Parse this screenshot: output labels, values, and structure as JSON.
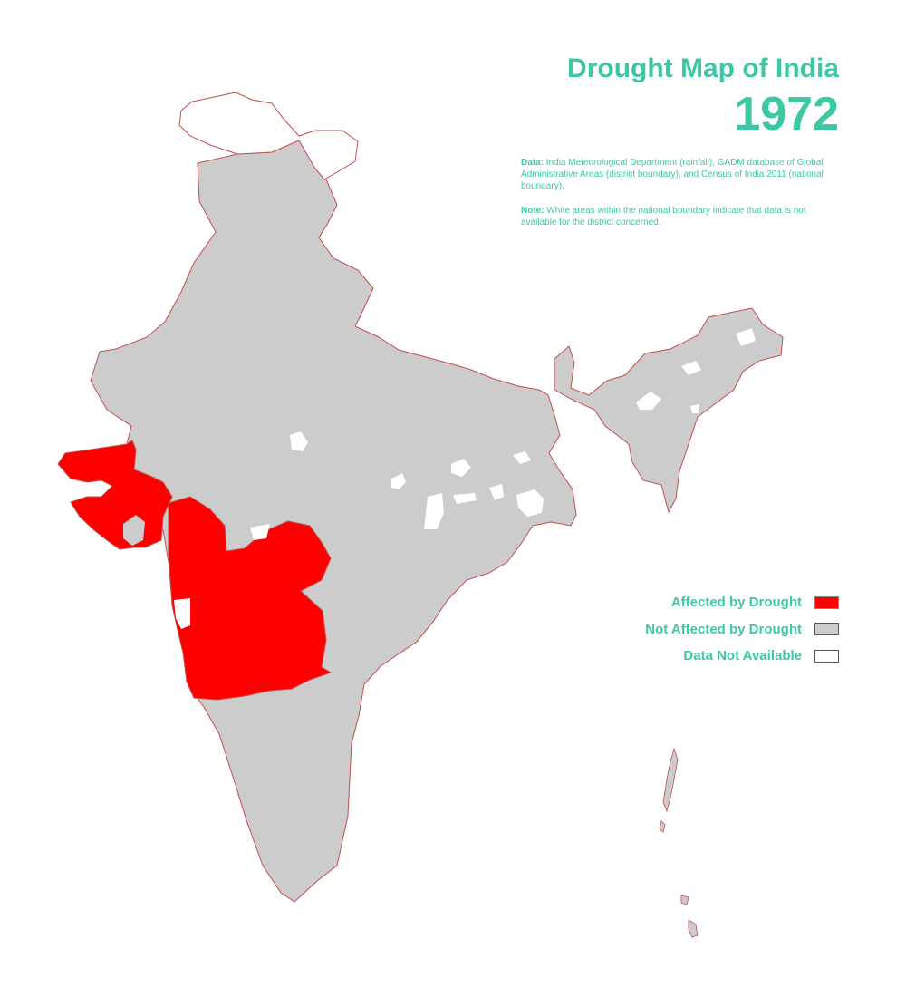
{
  "header": {
    "title": "Drought Map of India",
    "year": "1972"
  },
  "notes": {
    "data_label": "Data:",
    "data_text": " India Meteorological Department (rainfall), GADM database of Global Administrative Areas (district boundary), and Census of India 2011 (national boundary).",
    "note_label": "Note:",
    "note_text": " White areas within the national boundary indicate that data is not available for the district concerned."
  },
  "legend": {
    "items": [
      {
        "label": "Affected by Drought",
        "color": "#ff0000"
      },
      {
        "label": "Not Affected by Drought",
        "color": "#cccccc"
      },
      {
        "label": "Data Not Available",
        "color": "#ffffff"
      }
    ]
  },
  "colors": {
    "accent": "#3cc8a4",
    "affected": "#ff0000",
    "not_affected": "#cccccc",
    "no_data": "#ffffff",
    "boundary": "#c0504d"
  },
  "regions": [
    {
      "name": "Gujarat",
      "status": "Affected by Drought"
    },
    {
      "name": "Maharashtra",
      "status": "Affected by Drought"
    },
    {
      "name": "Jammu and Kashmir",
      "status": "Data Not Available"
    },
    {
      "name": "Rest of India",
      "status": "Not Affected by Drought"
    }
  ]
}
